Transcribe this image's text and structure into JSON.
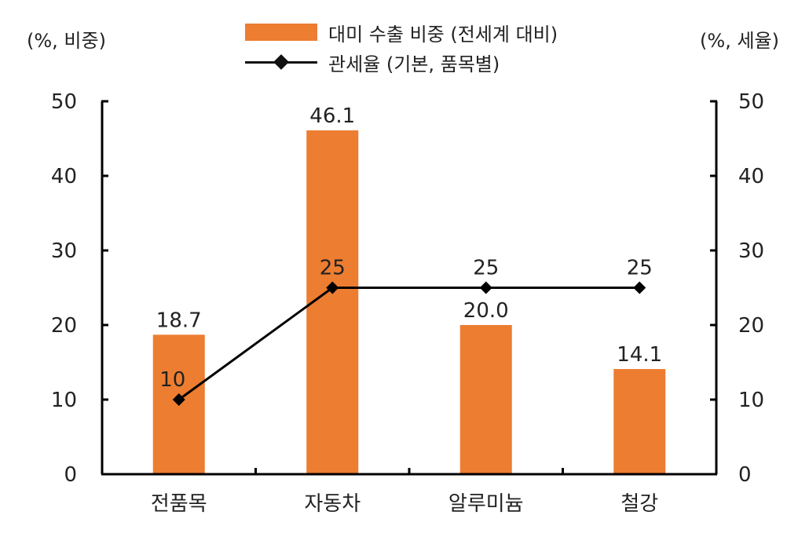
{
  "chart_data": {
    "type": "bar",
    "categories": [
      "전품목",
      "자동차",
      "알루미늄",
      "철강"
    ],
    "series": [
      {
        "name": "대미 수출 비중 (전세계 대비)",
        "type": "bar",
        "axis": "left",
        "values": [
          18.7,
          46.1,
          20.0,
          14.1
        ],
        "labels": [
          "18.7",
          "46.1",
          "20.0",
          "14.1"
        ]
      },
      {
        "name": "관세율 (기본, 품목별)",
        "type": "line",
        "axis": "right",
        "marker": "diamond",
        "values": [
          10,
          25,
          25,
          25
        ],
        "labels": [
          "10",
          "25",
          "25",
          "25"
        ]
      }
    ],
    "ylabel": "(%, 비중)",
    "y2label": "(%, 세율)",
    "ylim": [
      0,
      50
    ],
    "y2lim": [
      0,
      50
    ],
    "yticks": [
      "0",
      "10",
      "20",
      "30",
      "40",
      "50"
    ],
    "y2ticks": [
      "0",
      "10",
      "20",
      "30",
      "40",
      "50"
    ],
    "grid": false,
    "legend": "top-center"
  },
  "colors": {
    "bar": "#ED7D31",
    "line": "#000000"
  }
}
